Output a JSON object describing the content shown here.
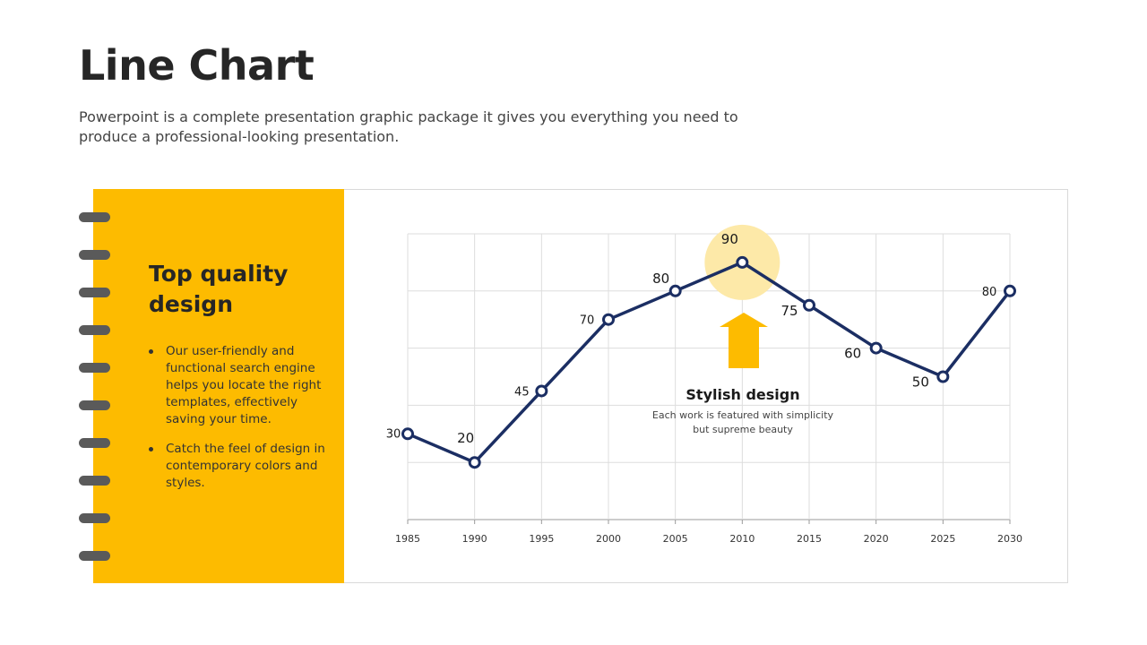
{
  "page": {
    "title": "Line Chart",
    "subtitle": "Powerpoint is a complete presentation graphic package it gives you everything you need to produce a professional-looking presentation."
  },
  "panel": {
    "title": "Top quality design",
    "bullets": [
      "Our user-friendly and functional search engine helps you locate the right templates, effectively saving your time.",
      "Catch the feel of design in contemporary colors and styles."
    ]
  },
  "annotation": {
    "title": "Stylish design",
    "text": "Each work is featured with simplicity but supreme beauty",
    "icon": "arrow-up-icon"
  },
  "colors": {
    "accent": "#FDBB00",
    "line": "#1B2E63",
    "highlight": "#FDE9A8",
    "ring": "#5A5A5A"
  },
  "chart_data": {
    "type": "line",
    "title": "",
    "xlabel": "",
    "ylabel": "",
    "x": [
      "1985",
      "1990",
      "1995",
      "2000",
      "2005",
      "2010",
      "2015",
      "2020",
      "2025",
      "2030"
    ],
    "series": [
      {
        "values": [
          30,
          20,
          45,
          70,
          80,
          90,
          75,
          60,
          50,
          80
        ]
      }
    ],
    "ylim": [
      0,
      100
    ],
    "grid": true,
    "legend": "none",
    "highlight_point": "2010"
  }
}
